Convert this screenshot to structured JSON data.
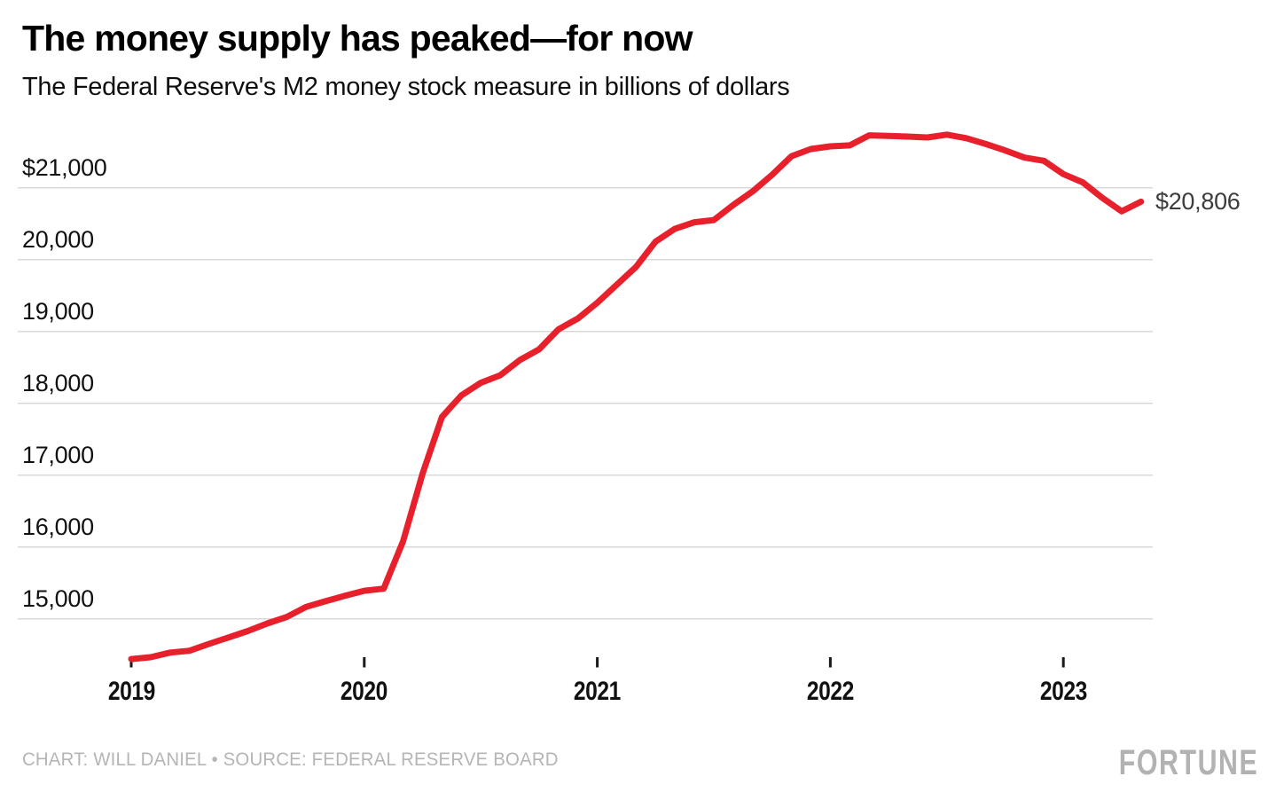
{
  "header": {
    "title": "The money supply has peaked—for now",
    "subtitle": "The Federal Reserve's M2 money stock measure in billions of dollars"
  },
  "footer": {
    "credit": "CHART: WILL DANIEL • SOURCE: FEDERAL RESERVE BOARD",
    "logo": "FORTUNE"
  },
  "chart_data": {
    "type": "line",
    "title": "The money supply has peaked—for now",
    "subtitle": "The Federal Reserve's M2 money stock measure in billions of dollars",
    "xlabel": "",
    "ylabel": "M2 money stock, billions of dollars",
    "grid": "horizontal",
    "legend": "none",
    "line_color": "#e8202c",
    "gridline_color": "#d9d9d9",
    "end_label": "$20,806",
    "end_value": 20806,
    "ylim": [
      14330,
      21790
    ],
    "yticks": {
      "labels": [
        "$21,000",
        "20,000",
        "19,000",
        "18,000",
        "17,000",
        "16,000",
        "15,000"
      ],
      "values": [
        21000,
        20000,
        19000,
        18000,
        17000,
        16000,
        15000
      ]
    },
    "xticks": [
      "2019",
      "2020",
      "2021",
      "2022",
      "2023"
    ],
    "x": [
      "2019-01",
      "2019-02",
      "2019-03",
      "2019-04",
      "2019-05",
      "2019-06",
      "2019-07",
      "2019-08",
      "2019-09",
      "2019-10",
      "2019-11",
      "2019-12",
      "2020-01",
      "2020-02",
      "2020-03",
      "2020-04",
      "2020-05",
      "2020-06",
      "2020-07",
      "2020-08",
      "2020-09",
      "2020-10",
      "2020-11",
      "2020-12",
      "2021-01",
      "2021-02",
      "2021-03",
      "2021-04",
      "2021-05",
      "2021-06",
      "2021-07",
      "2021-08",
      "2021-09",
      "2021-10",
      "2021-11",
      "2021-12",
      "2022-01",
      "2022-02",
      "2022-03",
      "2022-04",
      "2022-05",
      "2022-06",
      "2022-07",
      "2022-08",
      "2022-09",
      "2022-10",
      "2022-11",
      "2022-12",
      "2023-01",
      "2023-02",
      "2023-03",
      "2023-04",
      "2023-05"
    ],
    "series": [
      {
        "name": "M2 money stock",
        "values": [
          14440,
          14465,
          14530,
          14555,
          14650,
          14740,
          14830,
          14935,
          15025,
          15165,
          15245,
          15320,
          15390,
          15420,
          16080,
          17020,
          17810,
          18110,
          18285,
          18390,
          18600,
          18750,
          19030,
          19180,
          19400,
          19650,
          19900,
          20250,
          20430,
          20520,
          20550,
          20760,
          20950,
          21180,
          21440,
          21540,
          21577,
          21590,
          21730,
          21722,
          21712,
          21700,
          21740,
          21690,
          21610,
          21520,
          21420,
          21375,
          21190,
          21075,
          20860,
          20672,
          20806
        ]
      }
    ]
  }
}
